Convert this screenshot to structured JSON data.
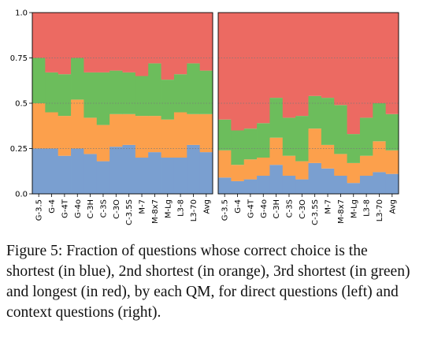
{
  "caption": {
    "text": "Figure 5: Fraction of questions whose correct choice is the shortest (in blue), 2nd shortest (in orange), 3rd shortest (in green) and longest (in red), by each QM, for direct questions (left) and context questions (right)."
  },
  "colors": {
    "shortest": "#7a9fd0",
    "second": "#fca04c",
    "third": "#6cbd5c",
    "longest": "#ec6a62"
  },
  "chart_data": [
    {
      "type": "bar",
      "stacked": true,
      "categories": [
        "G-3.5",
        "G-4",
        "G-4T",
        "G-4o",
        "C-3H",
        "C-3S",
        "C-3O",
        "C-3.5S",
        "M-7",
        "M-8x7",
        "M-Lg",
        "L3-8",
        "L3-70",
        "Avg"
      ],
      "ylim": [
        0,
        1
      ],
      "yticks": [
        "0.0",
        "0.25",
        "0.5",
        "0.75",
        "1.0"
      ],
      "grid": "dotted horizontal",
      "series": [
        {
          "color_key": "shortest",
          "values": [
            0.25,
            0.25,
            0.21,
            0.25,
            0.22,
            0.18,
            0.26,
            0.27,
            0.2,
            0.23,
            0.2,
            0.2,
            0.27,
            0.23
          ]
        },
        {
          "color_key": "second",
          "values": [
            0.25,
            0.2,
            0.22,
            0.27,
            0.2,
            0.2,
            0.18,
            0.17,
            0.23,
            0.2,
            0.21,
            0.25,
            0.17,
            0.21
          ]
        },
        {
          "color_key": "third",
          "values": [
            0.25,
            0.22,
            0.23,
            0.23,
            0.25,
            0.29,
            0.24,
            0.23,
            0.22,
            0.29,
            0.22,
            0.21,
            0.28,
            0.24
          ]
        },
        {
          "color_key": "longest",
          "values": [
            0.25,
            0.33,
            0.34,
            0.25,
            0.33,
            0.33,
            0.32,
            0.33,
            0.35,
            0.28,
            0.37,
            0.34,
            0.28,
            0.32
          ]
        }
      ]
    },
    {
      "type": "bar",
      "stacked": true,
      "categories": [
        "G-3.5",
        "G-4",
        "G-4T",
        "G-4o",
        "C-3H",
        "C-3S",
        "C-3O",
        "C-3.5S",
        "M-7",
        "M-8x7",
        "M-Lg",
        "L3-8",
        "L3-70",
        "Avg"
      ],
      "ylim": [
        0,
        1
      ],
      "grid": "dotted horizontal",
      "series": [
        {
          "color_key": "shortest",
          "values": [
            0.09,
            0.07,
            0.08,
            0.1,
            0.16,
            0.1,
            0.08,
            0.17,
            0.14,
            0.1,
            0.06,
            0.1,
            0.12,
            0.11
          ]
        },
        {
          "color_key": "second",
          "values": [
            0.15,
            0.09,
            0.11,
            0.1,
            0.15,
            0.11,
            0.1,
            0.19,
            0.13,
            0.12,
            0.11,
            0.11,
            0.17,
            0.13
          ]
        },
        {
          "color_key": "third",
          "values": [
            0.17,
            0.19,
            0.17,
            0.19,
            0.22,
            0.21,
            0.25,
            0.18,
            0.26,
            0.27,
            0.16,
            0.21,
            0.21,
            0.2
          ]
        },
        {
          "color_key": "longest",
          "values": [
            0.59,
            0.65,
            0.64,
            0.61,
            0.47,
            0.58,
            0.57,
            0.46,
            0.47,
            0.51,
            0.67,
            0.58,
            0.5,
            0.56
          ]
        }
      ]
    }
  ]
}
